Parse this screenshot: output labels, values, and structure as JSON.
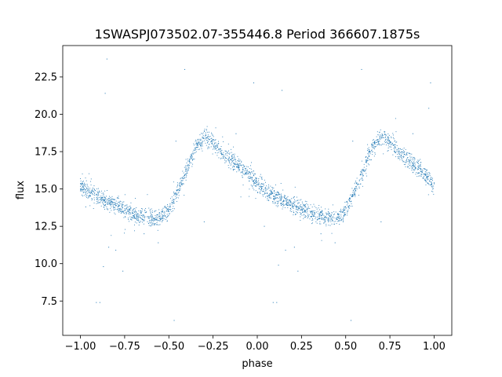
{
  "chart_data": {
    "type": "scatter",
    "title": "1SWASPJ073502.07-355446.8 Period 366607.1875s",
    "xlabel": "phase",
    "ylabel": "flux",
    "xlim": [
      -1.1,
      1.1
    ],
    "ylim": [
      5.2,
      24.6
    ],
    "xticks": [
      -1.0,
      -0.75,
      -0.5,
      -0.25,
      0.0,
      0.25,
      0.5,
      0.75,
      1.0
    ],
    "xtick_labels": [
      "−1.00",
      "−0.75",
      "−0.50",
      "−0.25",
      "0.00",
      "0.25",
      "0.50",
      "0.75",
      "1.00"
    ],
    "yticks": [
      7.5,
      10.0,
      12.5,
      15.0,
      17.5,
      20.0,
      22.5
    ],
    "ytick_labels": [
      "7.5",
      "10.0",
      "12.5",
      "15.0",
      "17.5",
      "20.0",
      "22.5"
    ],
    "grid": false,
    "marker_color": "#1f77b4",
    "phase_curve": {
      "phase": [
        0.0,
        0.05,
        0.1,
        0.15,
        0.2,
        0.25,
        0.3,
        0.35,
        0.4,
        0.45,
        0.5,
        0.55,
        0.6,
        0.65,
        0.7,
        0.75,
        0.8,
        0.85,
        0.9,
        0.95,
        1.0
      ],
      "flux": [
        15.3,
        14.8,
        14.5,
        14.2,
        13.9,
        13.7,
        13.3,
        13.2,
        13.1,
        13.0,
        13.5,
        14.8,
        16.2,
        17.7,
        18.5,
        18.2,
        17.4,
        17.0,
        16.5,
        16.0,
        15.3
      ]
    },
    "outliers": [
      {
        "x": -0.97,
        "y": 13.8
      },
      {
        "x": -0.91,
        "y": 7.4
      },
      {
        "x": -0.89,
        "y": 7.4
      },
      {
        "x": -0.87,
        "y": 9.8
      },
      {
        "x": -0.84,
        "y": 11.1
      },
      {
        "x": -0.8,
        "y": 10.9
      },
      {
        "x": -0.76,
        "y": 9.5
      },
      {
        "x": -0.86,
        "y": 21.4
      },
      {
        "x": -0.85,
        "y": 23.7
      },
      {
        "x": -0.64,
        "y": 12.0
      },
      {
        "x": -0.56,
        "y": 11.4
      },
      {
        "x": -0.47,
        "y": 6.2
      },
      {
        "x": -0.46,
        "y": 18.2
      },
      {
        "x": -0.41,
        "y": 23.0
      },
      {
        "x": -0.3,
        "y": 12.8
      },
      {
        "x": -0.12,
        "y": 18.7
      },
      {
        "x": -0.02,
        "y": 22.1
      },
      {
        "x": 0.04,
        "y": 12.5
      },
      {
        "x": 0.09,
        "y": 7.4
      },
      {
        "x": 0.11,
        "y": 7.4
      },
      {
        "x": 0.12,
        "y": 9.9
      },
      {
        "x": 0.16,
        "y": 10.9
      },
      {
        "x": 0.21,
        "y": 11.1
      },
      {
        "x": 0.23,
        "y": 9.5
      },
      {
        "x": 0.14,
        "y": 21.6
      },
      {
        "x": 0.36,
        "y": 12.0
      },
      {
        "x": 0.44,
        "y": 11.4
      },
      {
        "x": 0.53,
        "y": 6.2
      },
      {
        "x": 0.54,
        "y": 18.2
      },
      {
        "x": 0.59,
        "y": 23.0
      },
      {
        "x": 0.7,
        "y": 12.8
      },
      {
        "x": 0.88,
        "y": 18.7
      },
      {
        "x": 0.98,
        "y": 22.1
      },
      {
        "x": 0.97,
        "y": 20.4
      }
    ]
  }
}
